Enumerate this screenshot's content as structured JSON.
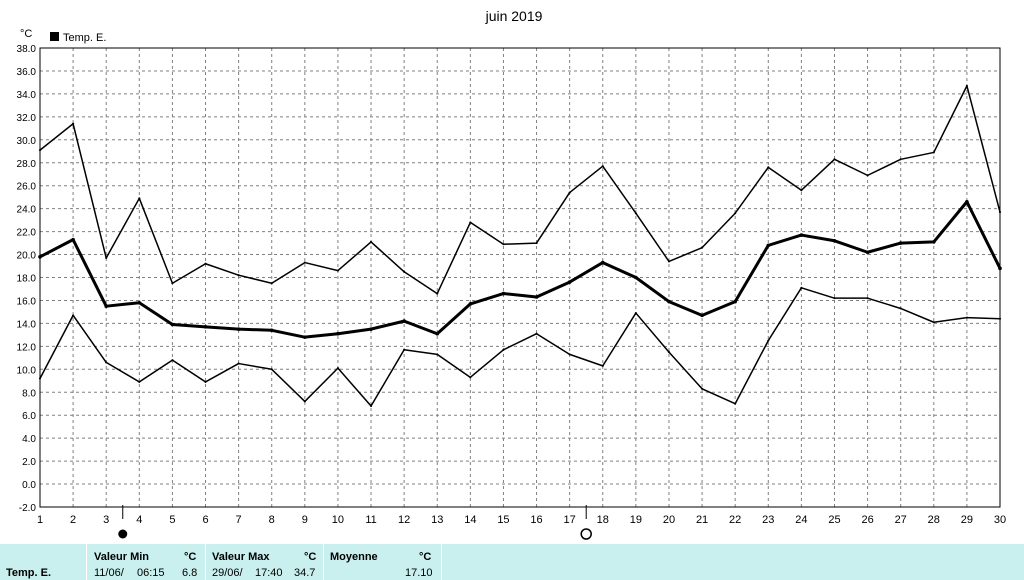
{
  "chart_data": {
    "type": "line",
    "title": "juin 2019",
    "y_unit": "°C",
    "ylim": [
      -2.0,
      38.0
    ],
    "y_ticks": [
      "38.0",
      "36.0",
      "34.0",
      "32.0",
      "30.0",
      "28.0",
      "26.0",
      "24.0",
      "22.0",
      "20.0",
      "18.0",
      "16.0",
      "14.0",
      "12.0",
      "10.0",
      "8.0",
      "6.0",
      "4.0",
      "2.0",
      "0.0",
      "-2.0"
    ],
    "x": [
      1,
      2,
      3,
      4,
      5,
      6,
      7,
      8,
      9,
      10,
      11,
      12,
      13,
      14,
      15,
      16,
      17,
      18,
      19,
      20,
      21,
      22,
      23,
      24,
      25,
      26,
      27,
      28,
      29,
      30
    ],
    "legend": {
      "label": "Temp. E.",
      "placement": "top-left"
    },
    "grid": true,
    "series": [
      {
        "name": "Temp. E.",
        "role": "max",
        "stroke": "#000000",
        "values": [
          29.1,
          31.4,
          19.7,
          24.9,
          17.5,
          19.2,
          18.2,
          17.5,
          19.3,
          18.6,
          21.1,
          18.5,
          16.6,
          22.8,
          20.9,
          21.0,
          25.4,
          27.7,
          23.6,
          19.4,
          20.6,
          23.6,
          27.6,
          25.6,
          28.3,
          26.9,
          28.3,
          28.9,
          34.7,
          23.7
        ]
      },
      {
        "name": "Temp. E.",
        "role": "mean",
        "stroke": "#000000",
        "values": [
          19.8,
          21.3,
          15.5,
          15.8,
          13.9,
          13.7,
          13.5,
          13.4,
          12.8,
          13.1,
          13.5,
          14.2,
          13.1,
          15.7,
          16.6,
          16.3,
          17.6,
          19.3,
          18.0,
          15.9,
          14.7,
          15.9,
          20.8,
          21.7,
          21.2,
          20.2,
          21.0,
          21.1,
          24.6,
          18.8
        ]
      },
      {
        "name": "Temp. E.",
        "role": "min",
        "stroke": "#000000",
        "values": [
          9.2,
          14.7,
          10.6,
          8.9,
          10.8,
          8.9,
          10.5,
          10.0,
          7.2,
          10.1,
          6.8,
          11.7,
          11.3,
          9.3,
          11.7,
          13.1,
          11.3,
          10.3,
          14.9,
          11.5,
          8.3,
          7.0,
          12.5,
          17.1,
          16.2,
          16.2,
          15.3,
          14.1,
          14.5,
          14.4
        ]
      }
    ],
    "annotations": [
      {
        "day": 3.5,
        "symbol": "full-moon-icon"
      },
      {
        "day": 17.5,
        "symbol": "new-moon-icon"
      }
    ]
  },
  "footer": {
    "series_label": "Temp. E.",
    "min": {
      "title": "Valeur Min",
      "unit": "°C",
      "date": "11/06/",
      "time": "06:15",
      "value": "6.8"
    },
    "max": {
      "title": "Valeur Max",
      "unit": "°C",
      "date": "29/06/",
      "time": "17:40",
      "value": "34.7"
    },
    "avg": {
      "title": "Moyenne",
      "unit": "°C",
      "value": "17.10"
    }
  },
  "colors": {
    "footer_bg": "#c9efee",
    "grid": "#808080",
    "line": "#000000"
  }
}
